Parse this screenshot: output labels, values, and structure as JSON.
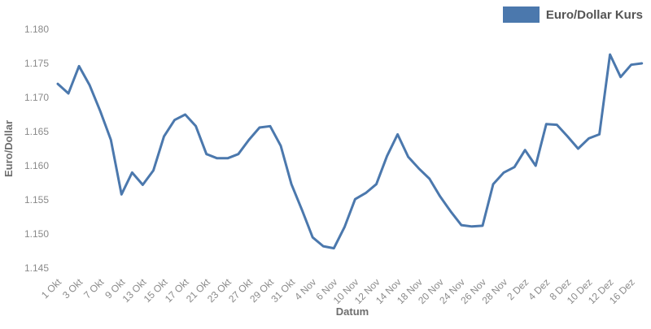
{
  "page": {
    "background": "#ffffff"
  },
  "chart_data": {
    "type": "line",
    "title": "",
    "xlabel": "Datum",
    "ylabel": "Euro/Dollar",
    "grid": false,
    "axes_spines": false,
    "legend_position": "top-right",
    "ylim": [
      1.145,
      1.18
    ],
    "y_tick_labels": [
      "1.145",
      "1.150",
      "1.155",
      "1.160",
      "1.165",
      "1.170",
      "1.175",
      "1.180"
    ],
    "x_label_every": 2,
    "x_tick_labels_shown": [
      "1 Okt",
      "3 Okt",
      "7 Okt",
      "9 Okt",
      "13 Okt",
      "15 Okt",
      "17 Okt",
      "21 Okt",
      "23 Okt",
      "27 Okt",
      "29 Okt",
      "31 Okt",
      "4 Nov",
      "6 Nov",
      "10 Nov",
      "12 Nov",
      "14 Nov",
      "18 Nov",
      "20 Nov",
      "24 Nov",
      "26 Nov",
      "28 Nov",
      "2 Dez",
      "4 Dez",
      "8 Dez",
      "10 Dez",
      "12 Dez",
      "16 Dez"
    ],
    "x": [
      "1 Okt",
      "2 Okt",
      "3 Okt",
      "6 Okt",
      "7 Okt",
      "8 Okt",
      "9 Okt",
      "10 Okt",
      "13 Okt",
      "14 Okt",
      "15 Okt",
      "16 Okt",
      "17 Okt",
      "20 Okt",
      "21 Okt",
      "22 Okt",
      "23 Okt",
      "24 Okt",
      "27 Okt",
      "28 Okt",
      "29 Okt",
      "30 Okt",
      "31 Okt",
      "3 Nov",
      "4 Nov",
      "5 Nov",
      "6 Nov",
      "7 Nov",
      "10 Nov",
      "11 Nov",
      "12 Nov",
      "13 Nov",
      "14 Nov",
      "17 Nov",
      "18 Nov",
      "19 Nov",
      "20 Nov",
      "21 Nov",
      "24 Nov",
      "25 Nov",
      "26 Nov",
      "27 Nov",
      "28 Nov",
      "1 Dez",
      "2 Dez",
      "3 Dez",
      "4 Dez",
      "5 Dez",
      "8 Dez",
      "9 Dez",
      "10 Dez",
      "11 Dez",
      "12 Dez",
      "15 Dez",
      "16 Dez",
      "17 Dez"
    ],
    "series": [
      {
        "name": "Euro/Dollar Kurs",
        "color": "#4b78ad",
        "values": [
          1.172,
          1.1706,
          1.1746,
          1.1718,
          1.168,
          1.1638,
          1.1558,
          1.159,
          1.1572,
          1.1593,
          1.1643,
          1.1667,
          1.1675,
          1.1658,
          1.1617,
          1.1611,
          1.1611,
          1.1617,
          1.1638,
          1.1656,
          1.1658,
          1.1629,
          1.1573,
          1.1535,
          1.1495,
          1.1482,
          1.1479,
          1.151,
          1.1551,
          1.156,
          1.1573,
          1.1614,
          1.1646,
          1.1613,
          1.1596,
          1.1581,
          1.1555,
          1.1533,
          1.1513,
          1.1511,
          1.1512,
          1.1573,
          1.159,
          1.1598,
          1.1623,
          1.16,
          1.1661,
          1.166,
          1.1643,
          1.1625,
          1.164,
          1.1646,
          1.1763,
          1.173,
          1.1748,
          1.175
        ]
      }
    ],
    "styles": {
      "line_width": 3,
      "tick_color": "#8a8a8a",
      "axis_title_color": "#6e6e6e",
      "legend_text_color": "#555555"
    }
  }
}
